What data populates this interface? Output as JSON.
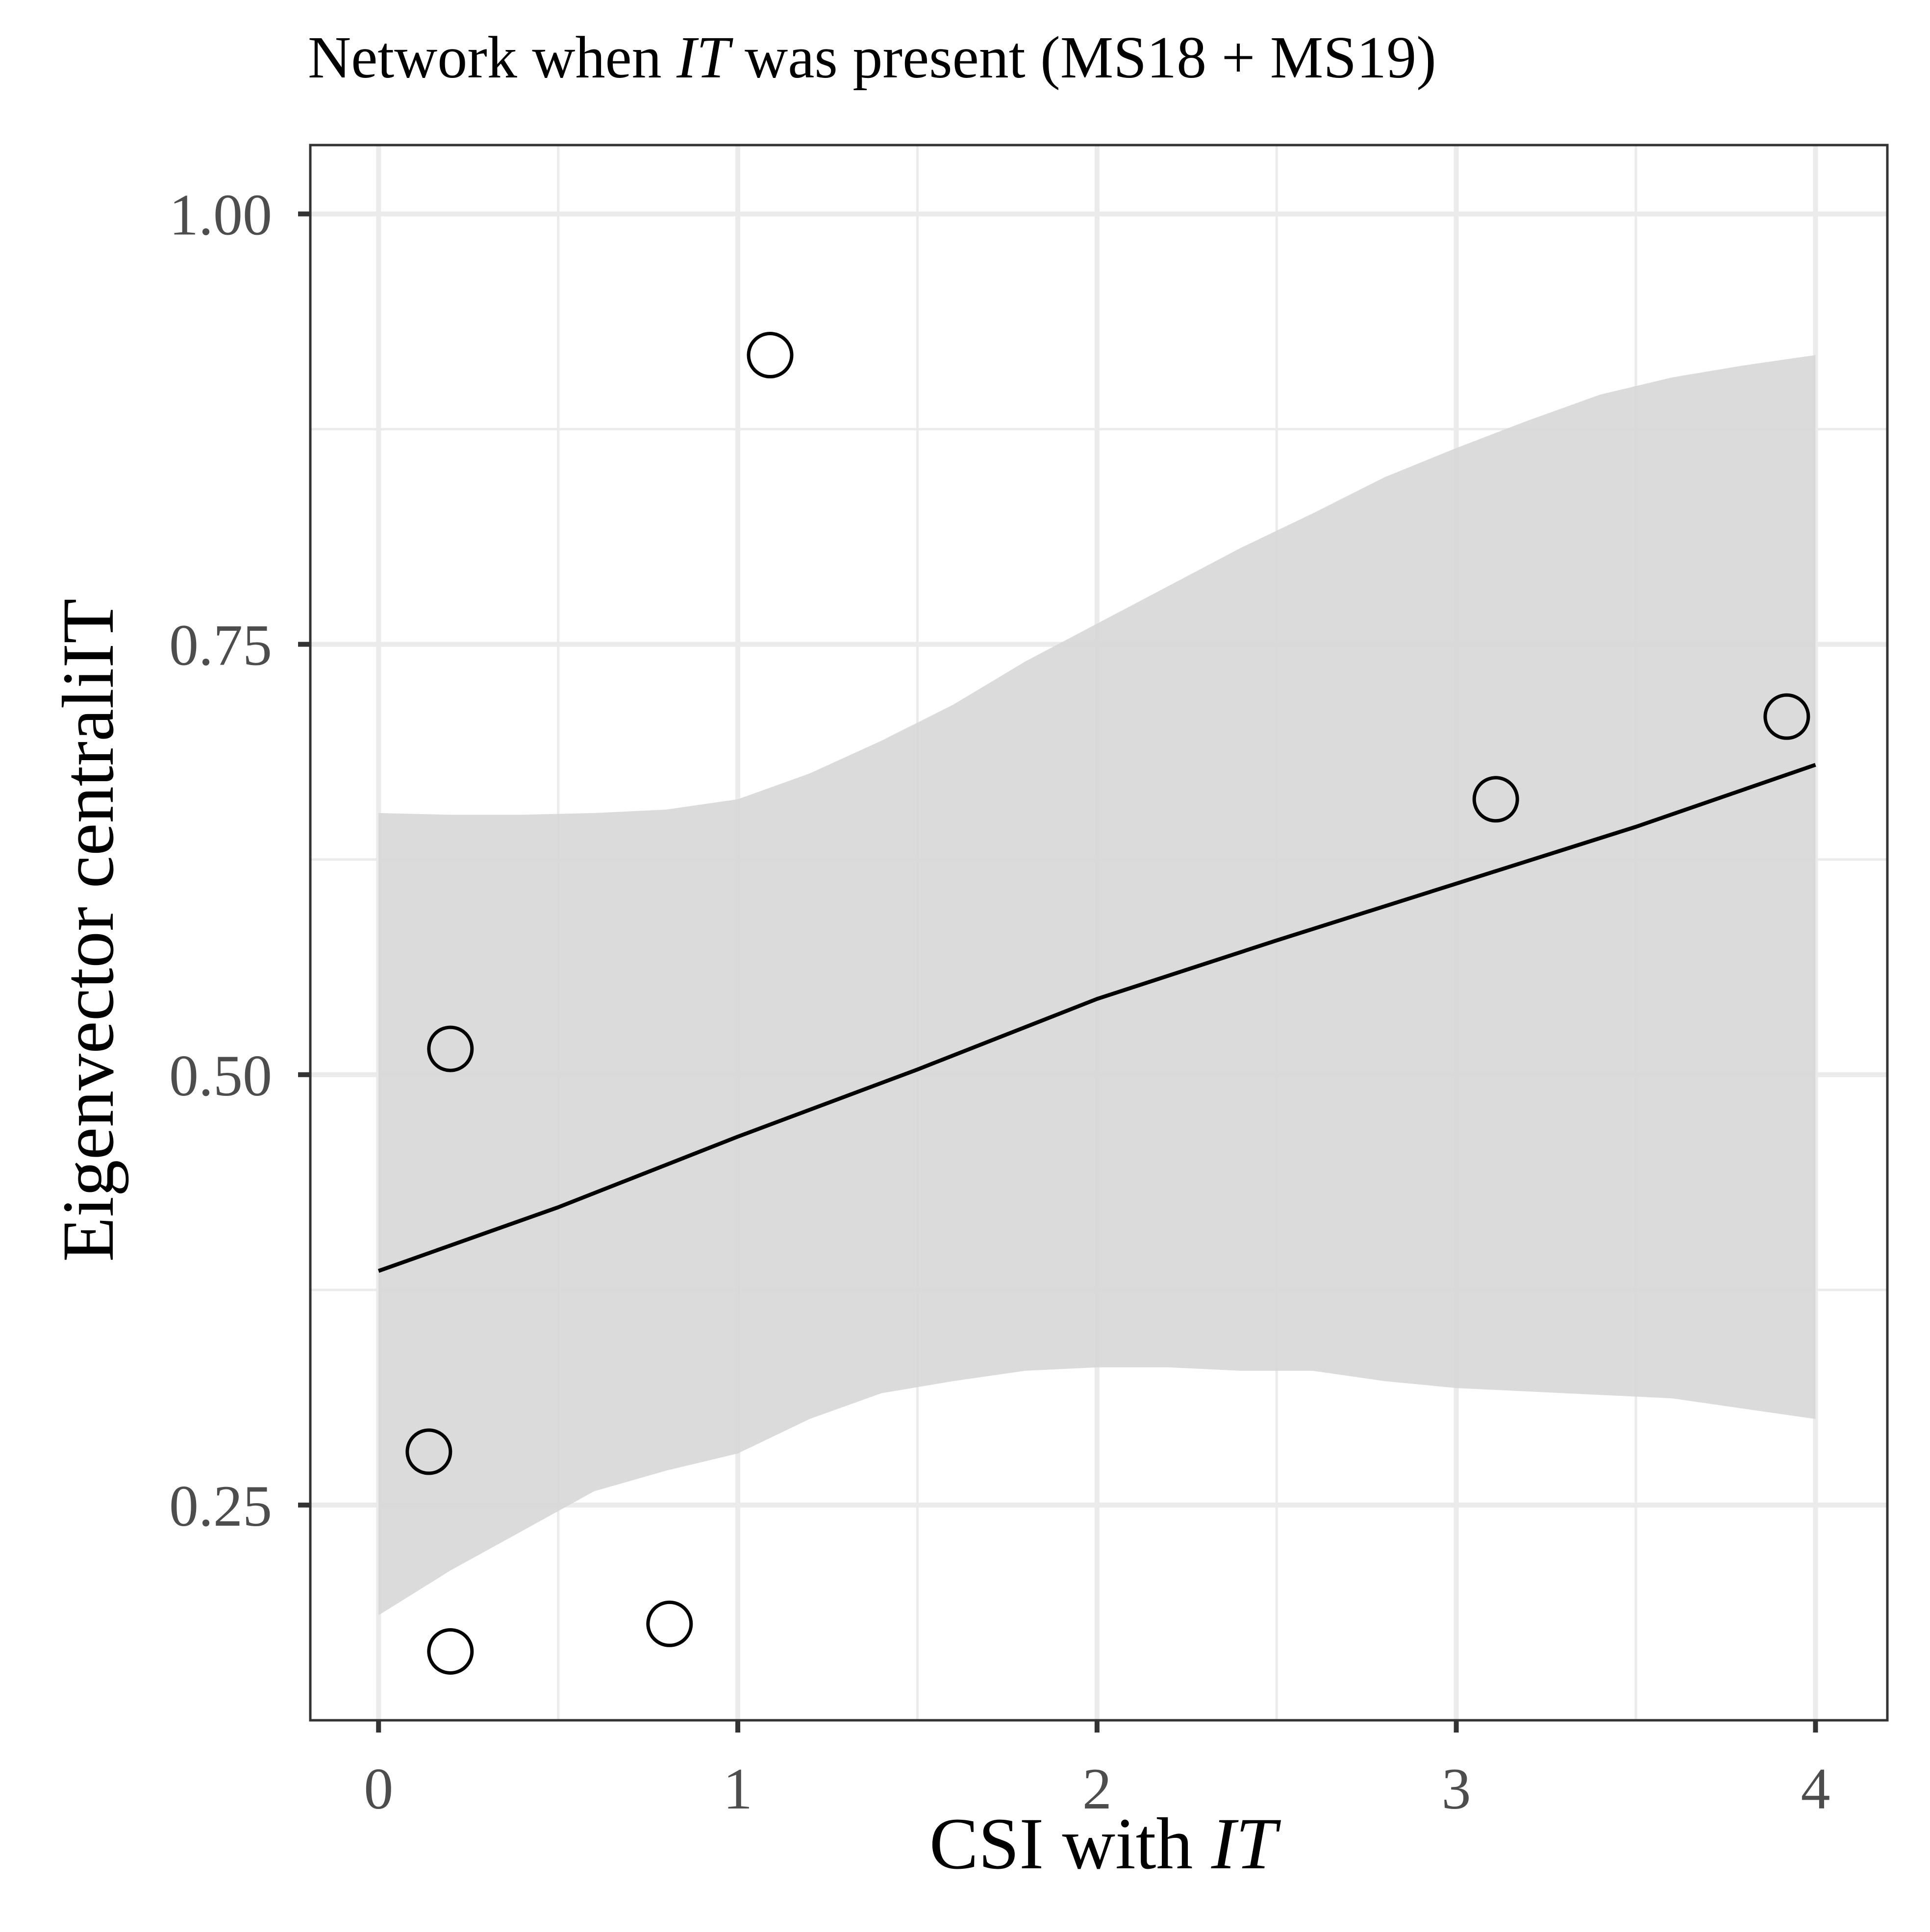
{
  "chart_data": {
    "type": "scatter",
    "title": {
      "before": "Network when ",
      "italic": "IT",
      "after": " was present (MS18 + MS19)"
    },
    "xlabel": {
      "before": "CSI with ",
      "italic": "IT"
    },
    "ylabel": "Eigenvector centraliIT",
    "xlim": [
      -0.19,
      4.2
    ],
    "ylim": [
      0.125,
      1.04
    ],
    "x_ticks": [
      0,
      1,
      2,
      3,
      4
    ],
    "x_tick_labels": [
      "0",
      "1",
      "2",
      "3",
      "4"
    ],
    "y_ticks": [
      0.25,
      0.5,
      0.75,
      1.0
    ],
    "y_tick_labels": [
      "0.25",
      "0.50",
      "0.75",
      "1.00"
    ],
    "x_minor_gridlines": [
      0.5,
      1.5,
      2.5,
      3.5
    ],
    "y_minor_gridlines": [
      0.375,
      0.625,
      0.875
    ],
    "grid": true,
    "points": [
      {
        "x": 0.14,
        "y": 0.281
      },
      {
        "x": 0.2,
        "y": 0.165
      },
      {
        "x": 0.2,
        "y": 0.515
      },
      {
        "x": 0.81,
        "y": 0.181
      },
      {
        "x": 1.09,
        "y": 0.918
      },
      {
        "x": 3.11,
        "y": 0.66
      },
      {
        "x": 3.92,
        "y": 0.708
      }
    ],
    "fit_line": {
      "x": [
        0.0,
        0.5,
        1.0,
        1.5,
        2.0,
        2.5,
        3.0,
        3.5,
        4.0
      ],
      "y": [
        0.386,
        0.423,
        0.464,
        0.503,
        0.544,
        0.578,
        0.611,
        0.644,
        0.68
      ]
    },
    "confidence_band": {
      "x": [
        0.0,
        0.2,
        0.4,
        0.6,
        0.8,
        1.0,
        1.2,
        1.4,
        1.6,
        1.8,
        2.0,
        2.2,
        2.4,
        2.6,
        2.8,
        3.0,
        3.2,
        3.4,
        3.6,
        3.8,
        4.0
      ],
      "ymin": [
        0.186,
        0.212,
        0.235,
        0.258,
        0.27,
        0.28,
        0.3,
        0.315,
        0.322,
        0.328,
        0.33,
        0.33,
        0.328,
        0.328,
        0.322,
        0.318,
        0.316,
        0.314,
        0.312,
        0.306,
        0.3
      ],
      "ymax": [
        0.652,
        0.651,
        0.651,
        0.652,
        0.654,
        0.66,
        0.675,
        0.694,
        0.715,
        0.74,
        0.762,
        0.784,
        0.806,
        0.826,
        0.847,
        0.864,
        0.88,
        0.895,
        0.905,
        0.912,
        0.918
      ]
    },
    "colors": {
      "band": "#d7d7d7",
      "line": "#000000",
      "points": "#000000",
      "grid": "#ebebeb",
      "panel_border": "#333333",
      "tick_labels": "#4d4d4d",
      "title": "#000000"
    }
  }
}
